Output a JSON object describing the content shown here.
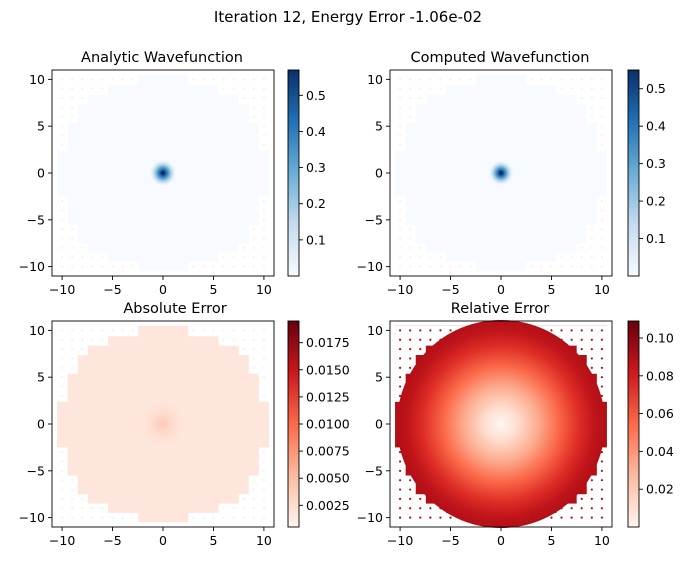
{
  "figure": {
    "suptitle": "Iteration 12, Energy Error -1.06e-02"
  },
  "chart_data": [
    {
      "type": "heatmap",
      "title": "Analytic Wavefunction",
      "xlim": [
        -11,
        11
      ],
      "ylim": [
        -11,
        11
      ],
      "xticks": [
        -10,
        -5,
        0,
        5,
        10
      ],
      "yticks": [
        -10,
        -5,
        0,
        5,
        10
      ],
      "grid": "off",
      "colormap": "Blues",
      "color_range": [
        0,
        0.57
      ],
      "colorbar_ticks": [
        0.1,
        0.2,
        0.3,
        0.4,
        0.5
      ],
      "peak": {
        "x": 0,
        "y": 0,
        "value": 0.57
      }
    },
    {
      "type": "heatmap",
      "title": "Computed Wavefunction",
      "xlim": [
        -11,
        11
      ],
      "ylim": [
        -11,
        11
      ],
      "xticks": [
        -10,
        -5,
        0,
        5,
        10
      ],
      "yticks": [
        -10,
        -5,
        0,
        5,
        10
      ],
      "grid": "off",
      "colormap": "Blues",
      "color_range": [
        0,
        0.55
      ],
      "colorbar_ticks": [
        0.1,
        0.2,
        0.3,
        0.4,
        0.5
      ],
      "peak": {
        "x": 0,
        "y": 0,
        "value": 0.55
      }
    },
    {
      "type": "heatmap",
      "title": "Absolute Error",
      "xlim": [
        -11,
        11
      ],
      "ylim": [
        -11,
        11
      ],
      "xticks": [
        -10,
        -5,
        0,
        5,
        10
      ],
      "yticks": [
        -10,
        -5,
        0,
        5,
        10
      ],
      "grid": "off",
      "colormap": "Reds",
      "color_range": [
        0.0005,
        0.0195
      ],
      "colorbar_ticks": [
        0.0025,
        0.005,
        0.0075,
        0.01,
        0.0125,
        0.015,
        0.0175
      ],
      "colorbar_tick_labels": [
        "0.0025",
        "0.0050",
        "0.0075",
        "0.0100",
        "0.0125",
        "0.0150",
        "0.0175"
      ]
    },
    {
      "type": "heatmap",
      "title": "Relative Error",
      "xlim": [
        -11,
        11
      ],
      "ylim": [
        -11,
        11
      ],
      "xticks": [
        -10,
        -5,
        0,
        5,
        10
      ],
      "yticks": [
        -10,
        -5,
        0,
        5,
        10
      ],
      "grid": "off",
      "colormap": "Reds",
      "color_range": [
        0.0,
        0.109
      ],
      "colorbar_ticks": [
        0.02,
        0.04,
        0.06,
        0.08,
        0.1
      ],
      "colorbar_tick_labels": [
        "0.02",
        "0.04",
        "0.06",
        "0.08",
        "0.10"
      ]
    }
  ]
}
